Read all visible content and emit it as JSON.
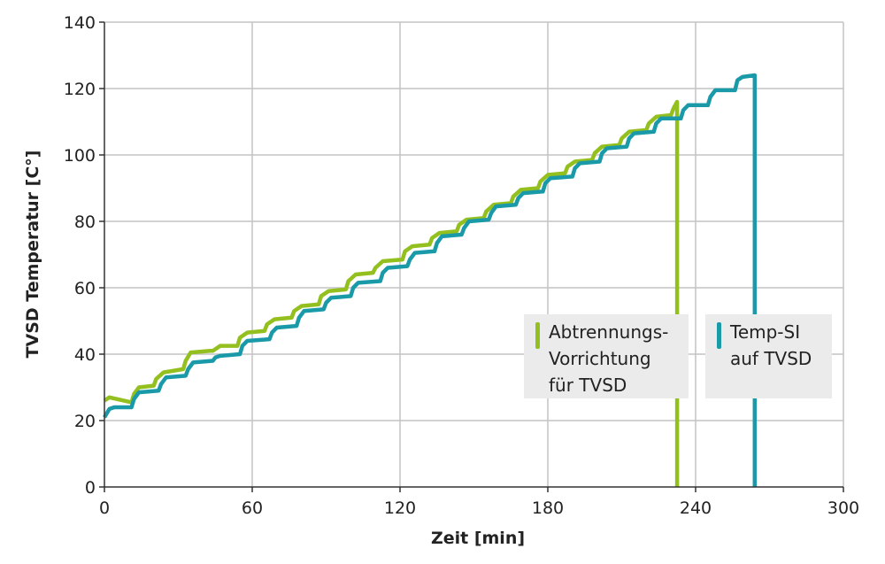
{
  "chart_data": {
    "type": "line",
    "title": "",
    "xlabel": "Zeit [min]",
    "ylabel": "TVSD Temperatur [C°]",
    "xlim": [
      0,
      300
    ],
    "ylim": [
      0,
      140
    ],
    "xticks": [
      0,
      60,
      120,
      180,
      240,
      300
    ],
    "yticks": [
      0,
      20,
      40,
      60,
      80,
      100,
      120,
      140
    ],
    "grid": true,
    "legend_position": "inside-lower-right",
    "series": [
      {
        "name": "Abtrennungs-Vorrichtung für TVSD",
        "color": "#93c01f",
        "x": [
          0,
          2,
          11,
          12,
          14,
          20,
          21,
          24,
          32,
          33,
          35,
          43,
          44,
          47,
          54,
          55,
          58,
          65,
          66,
          69,
          76,
          77,
          80,
          87,
          88,
          91,
          98,
          99,
          102,
          109,
          110,
          113,
          121,
          122,
          125,
          132,
          133,
          136,
          143,
          144,
          147,
          154,
          155,
          158,
          165,
          166,
          169,
          176,
          177,
          180,
          187,
          188,
          191,
          198,
          199,
          202,
          209,
          210,
          213,
          220,
          221,
          224,
          230,
          231,
          232.5,
          232.5
        ],
        "y": [
          26,
          27,
          25.5,
          28,
          30,
          30.5,
          32.5,
          34.5,
          35.5,
          38,
          40.5,
          41,
          41,
          42.5,
          42.5,
          45,
          46.5,
          47,
          49,
          50.5,
          51,
          53,
          54.5,
          55,
          57.5,
          59,
          59.5,
          62,
          64,
          64.5,
          66,
          68,
          68.5,
          71,
          72.5,
          73,
          75,
          76.5,
          77,
          79,
          80.5,
          81,
          83,
          85,
          85.5,
          87.5,
          89.5,
          90,
          92,
          94,
          94.5,
          96.5,
          98,
          98.5,
          100.5,
          102.5,
          103,
          105,
          107,
          107.5,
          109.5,
          111.5,
          112,
          114,
          116,
          0
        ]
      },
      {
        "name": "Temp-SI auf TVSD",
        "color": "#1a9aa8",
        "x": [
          0,
          2,
          4,
          11,
          12,
          14,
          22,
          23,
          25,
          33,
          34,
          36,
          44,
          45,
          47,
          55,
          56,
          58,
          67,
          68,
          70,
          78,
          79,
          81,
          89,
          90,
          92,
          100,
          101,
          103,
          112,
          113,
          115,
          123,
          124,
          126,
          134,
          135,
          137,
          145,
          146,
          148,
          156,
          157,
          159,
          167,
          168,
          170,
          178,
          179,
          181,
          190,
          191,
          193,
          201,
          202,
          204,
          212,
          213,
          215,
          223,
          224,
          226,
          234,
          235,
          237,
          245,
          246,
          248,
          256,
          257,
          259,
          264,
          264
        ],
        "y": [
          21,
          23.5,
          24,
          24,
          26.5,
          28.5,
          29,
          31,
          33,
          33.5,
          35.5,
          37.5,
          38,
          39,
          39.5,
          40,
          42.5,
          44,
          44.5,
          46.5,
          48,
          48.5,
          51,
          53,
          53.5,
          55.5,
          57,
          57.5,
          60,
          61.5,
          62,
          64.5,
          66,
          66.5,
          68.5,
          70.5,
          71,
          73.5,
          75.5,
          76,
          78,
          80,
          80.5,
          82.5,
          84.5,
          85,
          87,
          88.5,
          89,
          91.5,
          93,
          93.5,
          96,
          97.5,
          98,
          100.5,
          102,
          102.5,
          105,
          106.5,
          107,
          109.5,
          111,
          111,
          113.5,
          115,
          115,
          117.5,
          119.5,
          119.5,
          122.5,
          123.5,
          124,
          0
        ]
      }
    ]
  },
  "axes": {
    "x_title": "Zeit [min]",
    "y_title": "TVSD Temperatur [C°]",
    "x_ticks": [
      "0",
      "60",
      "120",
      "180",
      "240",
      "300"
    ],
    "y_ticks": [
      "0",
      "20",
      "40",
      "60",
      "80",
      "100",
      "120",
      "140"
    ]
  },
  "legend": [
    {
      "label": "Abtrennungs-\nVorrichtung\nfür TVSD",
      "color": "#93c01f"
    },
    {
      "label": "Temp-SI\nauf TVSD",
      "color": "#1a9aa8"
    }
  ],
  "colors": {
    "grid": "#c4c4c4",
    "axis": "#333333",
    "legend_bg": "#ebebeb"
  }
}
